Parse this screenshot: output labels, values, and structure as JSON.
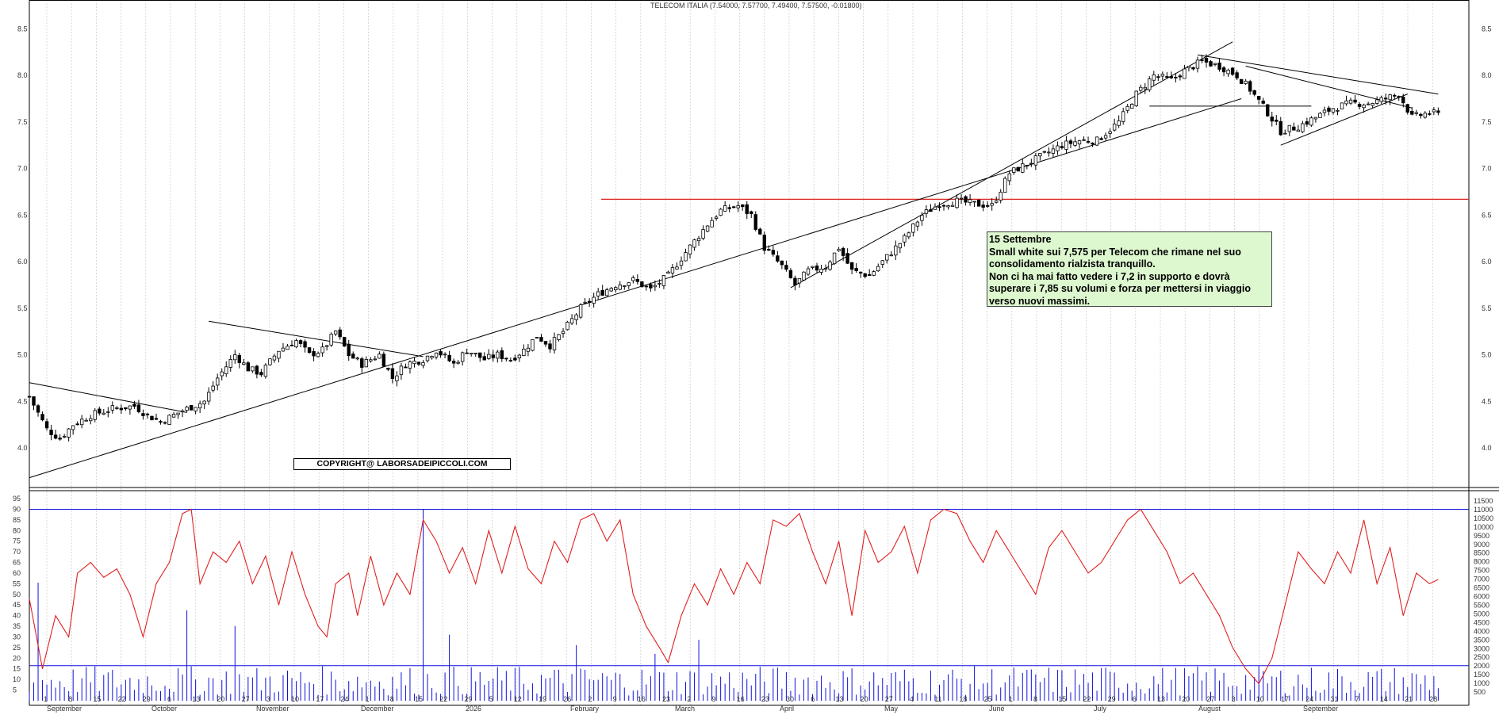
{
  "title": "TELECOM ITALIA (7.54000, 7.57700, 7.49400, 7.57500, -0.01800)",
  "annotation": {
    "lines": [
      "15  Settembre",
      "Small white sui 7,575 per Telecom che rimane nel suo",
      "consolidamento rialzista tranquillo.",
      "Non ci ha mai fatto vedere i 7,2 in supporto e dovrà",
      "superare i 7,85 su volumi e forza per mettersi in viaggio",
      "verso nuovi massimi."
    ]
  },
  "copyright": "COPYRIGHT@ LABORSADEIPICCOLI.COM",
  "colors": {
    "candle": "#000000",
    "resistance": "#e02020",
    "oscillator": "#e02020",
    "volume": "#1010e0",
    "band": "#1010e0",
    "grid": "#c8c8c8"
  },
  "chart_data": [
    {
      "type": "candlestick",
      "title": "TELECOM ITALIA (7.54000, 7.57700, 7.49400, 7.57500, -0.01800)",
      "y_ticks": [
        "4.0",
        "4.5",
        "5.0",
        "5.5",
        "6.0",
        "6.5",
        "7.0",
        "7.5",
        "8.0",
        "8.5"
      ],
      "ylim": [
        3.6,
        8.75
      ],
      "resistance_level": 6.67,
      "last_ohlc": {
        "open": 7.54,
        "high": 7.577,
        "low": 7.494,
        "close": 7.575,
        "change": -0.018
      },
      "close_path": [
        [
          0,
          4.55
        ],
        [
          4,
          4.2
        ],
        [
          7,
          4.1
        ],
        [
          10,
          4.25
        ],
        [
          14,
          4.35
        ],
        [
          19,
          4.42
        ],
        [
          24,
          4.45
        ],
        [
          27,
          4.35
        ],
        [
          30,
          4.28
        ],
        [
          35,
          4.4
        ],
        [
          40,
          4.5
        ],
        [
          43,
          4.75
        ],
        [
          47,
          5.0
        ],
        [
          50,
          4.85
        ],
        [
          53,
          4.8
        ],
        [
          57,
          5.05
        ],
        [
          61,
          5.15
        ],
        [
          64,
          5.0
        ],
        [
          67,
          5.05
        ],
        [
          70,
          5.25
        ],
        [
          73,
          5.0
        ],
        [
          76,
          4.9
        ],
        [
          80,
          5.0
        ],
        [
          83,
          4.75
        ],
        [
          86,
          4.9
        ],
        [
          90,
          4.95
        ],
        [
          93,
          5.05
        ],
        [
          97,
          4.9
        ],
        [
          100,
          5.05
        ],
        [
          104,
          4.95
        ],
        [
          107,
          5.0
        ],
        [
          110,
          4.95
        ],
        [
          113,
          5.05
        ],
        [
          116,
          5.2
        ],
        [
          119,
          5.1
        ],
        [
          122,
          5.25
        ],
        [
          126,
          5.5
        ],
        [
          130,
          5.65
        ],
        [
          134,
          5.75
        ],
        [
          138,
          5.8
        ],
        [
          142,
          5.7
        ],
        [
          146,
          5.85
        ],
        [
          150,
          6.1
        ],
        [
          155,
          6.4
        ],
        [
          158,
          6.55
        ],
        [
          162,
          6.6
        ],
        [
          165,
          6.5
        ],
        [
          168,
          6.15
        ],
        [
          172,
          5.95
        ],
        [
          175,
          5.75
        ],
        [
          178,
          5.9
        ],
        [
          182,
          5.95
        ],
        [
          185,
          6.15
        ],
        [
          188,
          5.9
        ],
        [
          192,
          5.85
        ],
        [
          196,
          6.05
        ],
        [
          200,
          6.25
        ],
        [
          204,
          6.5
        ],
        [
          208,
          6.62
        ],
        [
          212,
          6.65
        ],
        [
          216,
          6.62
        ],
        [
          220,
          6.6
        ],
        [
          224,
          6.95
        ],
        [
          228,
          7.05
        ],
        [
          232,
          7.15
        ],
        [
          236,
          7.25
        ],
        [
          240,
          7.3
        ],
        [
          244,
          7.3
        ],
        [
          249,
          7.5
        ],
        [
          253,
          7.8
        ],
        [
          257,
          8.0
        ],
        [
          261,
          7.95
        ],
        [
          264,
          8.05
        ],
        [
          268,
          8.15
        ],
        [
          272,
          8.1
        ],
        [
          276,
          8.0
        ],
        [
          279,
          7.85
        ],
        [
          283,
          7.6
        ],
        [
          286,
          7.4
        ],
        [
          290,
          7.45
        ],
        [
          294,
          7.55
        ],
        [
          298,
          7.65
        ],
        [
          302,
          7.7
        ],
        [
          306,
          7.7
        ],
        [
          310,
          7.75
        ],
        [
          313,
          7.8
        ],
        [
          316,
          7.55
        ],
        [
          320,
          7.6
        ],
        [
          322,
          7.58
        ]
      ],
      "trendlines": [
        {
          "from": [
            0,
            4.7
          ],
          "to": [
            36,
            4.38
          ]
        },
        {
          "from": [
            0,
            3.68
          ],
          "to": [
            277,
            7.75
          ]
        },
        {
          "from": [
            41,
            5.36
          ],
          "to": [
            90,
            4.98
          ]
        },
        {
          "from": [
            174,
            5.72
          ],
          "to": [
            275,
            8.36
          ]
        },
        {
          "from": [
            256,
            7.67
          ],
          "to": [
            293,
            7.67
          ]
        },
        {
          "from": [
            267,
            8.22
          ],
          "to": [
            322,
            7.8
          ]
        },
        {
          "from": [
            278,
            8.1
          ],
          "to": [
            316,
            7.65
          ]
        },
        {
          "from": [
            286,
            7.25
          ],
          "to": [
            315,
            7.8
          ]
        }
      ]
    },
    {
      "type": "line",
      "name": "oscillator",
      "y_ticks": [
        "5",
        "10",
        "15",
        "20",
        "25",
        "30",
        "35",
        "40",
        "45",
        "50",
        "55",
        "60",
        "65",
        "70",
        "75",
        "80",
        "85",
        "90",
        "95"
      ],
      "ylim": [
        0,
        98
      ],
      "bands": [
        16.5,
        90
      ],
      "key_points": [
        [
          0,
          48
        ],
        [
          3,
          15
        ],
        [
          6,
          40
        ],
        [
          9,
          30
        ],
        [
          11,
          60
        ],
        [
          14,
          65
        ],
        [
          17,
          58
        ],
        [
          20,
          62
        ],
        [
          23,
          50
        ],
        [
          26,
          30
        ],
        [
          29,
          55
        ],
        [
          32,
          65
        ],
        [
          35,
          88
        ],
        [
          37,
          90
        ],
        [
          39,
          55
        ],
        [
          42,
          70
        ],
        [
          45,
          65
        ],
        [
          48,
          75
        ],
        [
          51,
          55
        ],
        [
          54,
          68
        ],
        [
          57,
          45
        ],
        [
          60,
          70
        ],
        [
          63,
          50
        ],
        [
          66,
          35
        ],
        [
          68,
          30
        ],
        [
          70,
          55
        ],
        [
          73,
          60
        ],
        [
          75,
          40
        ],
        [
          78,
          68
        ],
        [
          81,
          45
        ],
        [
          84,
          60
        ],
        [
          87,
          50
        ],
        [
          90,
          85
        ],
        [
          93,
          75
        ],
        [
          96,
          60
        ],
        [
          99,
          72
        ],
        [
          102,
          55
        ],
        [
          105,
          80
        ],
        [
          108,
          60
        ],
        [
          111,
          82
        ],
        [
          114,
          62
        ],
        [
          117,
          55
        ],
        [
          120,
          75
        ],
        [
          123,
          65
        ],
        [
          126,
          85
        ],
        [
          129,
          88
        ],
        [
          132,
          75
        ],
        [
          135,
          85
        ],
        [
          138,
          50
        ],
        [
          141,
          35
        ],
        [
          144,
          25
        ],
        [
          146,
          18
        ],
        [
          149,
          40
        ],
        [
          152,
          55
        ],
        [
          155,
          45
        ],
        [
          158,
          62
        ],
        [
          161,
          50
        ],
        [
          164,
          65
        ],
        [
          167,
          55
        ],
        [
          170,
          85
        ],
        [
          173,
          82
        ],
        [
          176,
          88
        ],
        [
          179,
          70
        ],
        [
          182,
          55
        ],
        [
          185,
          75
        ],
        [
          188,
          40
        ],
        [
          191,
          80
        ],
        [
          194,
          65
        ],
        [
          197,
          70
        ],
        [
          200,
          82
        ],
        [
          203,
          60
        ],
        [
          206,
          85
        ],
        [
          209,
          90
        ],
        [
          212,
          88
        ],
        [
          215,
          75
        ],
        [
          218,
          65
        ],
        [
          221,
          80
        ],
        [
          224,
          70
        ],
        [
          227,
          60
        ],
        [
          230,
          50
        ],
        [
          233,
          72
        ],
        [
          236,
          80
        ],
        [
          239,
          70
        ],
        [
          242,
          60
        ],
        [
          245,
          65
        ],
        [
          248,
          75
        ],
        [
          251,
          85
        ],
        [
          254,
          90
        ],
        [
          257,
          80
        ],
        [
          260,
          70
        ],
        [
          263,
          55
        ],
        [
          266,
          60
        ],
        [
          269,
          50
        ],
        [
          272,
          40
        ],
        [
          275,
          25
        ],
        [
          278,
          15
        ],
        [
          281,
          8
        ],
        [
          284,
          20
        ],
        [
          287,
          45
        ],
        [
          290,
          70
        ],
        [
          293,
          62
        ],
        [
          296,
          55
        ],
        [
          299,
          70
        ],
        [
          302,
          60
        ],
        [
          305,
          85
        ],
        [
          308,
          55
        ],
        [
          311,
          72
        ],
        [
          314,
          40
        ],
        [
          317,
          60
        ],
        [
          320,
          55
        ],
        [
          322,
          57
        ]
      ]
    },
    {
      "type": "bar",
      "name": "volume",
      "y_ticks": [
        "500",
        "1000",
        "1500",
        "2000",
        "2500",
        "3000",
        "3500",
        "4000",
        "4500",
        "5000",
        "5500",
        "6000",
        "6500",
        "7000",
        "7500",
        "8000",
        "8500",
        "9000",
        "9500",
        "10000",
        "10500",
        "11000",
        "11500"
      ],
      "ylim": [
        0,
        12000
      ],
      "spikes": [
        [
          2,
          6800
        ],
        [
          36,
          5200
        ],
        [
          47,
          4300
        ],
        [
          90,
          11000
        ],
        [
          96,
          3800
        ],
        [
          125,
          3200
        ],
        [
          143,
          2700
        ],
        [
          153,
          3500
        ]
      ],
      "x_months": [
        "September",
        "October",
        "November",
        "December",
        "2026",
        "February",
        "March",
        "April",
        "May",
        "June",
        "July",
        "August",
        "September"
      ],
      "x_days": [
        "1",
        "8",
        "15",
        "22",
        "29",
        "6",
        "13",
        "20",
        "27",
        "3",
        "10",
        "17",
        "24",
        "1",
        "8",
        "15",
        "22",
        "29",
        "5",
        "12",
        "19",
        "26",
        "2",
        "9",
        "16",
        "23",
        "2",
        "9",
        "16",
        "23",
        "30",
        "6",
        "13",
        "20",
        "27",
        "4",
        "11",
        "18",
        "25",
        "1",
        "8",
        "15",
        "22",
        "29",
        "6",
        "13",
        "20",
        "27",
        "3",
        "10",
        "17",
        "24",
        "31",
        "7",
        "14",
        "21",
        "28"
      ]
    }
  ]
}
